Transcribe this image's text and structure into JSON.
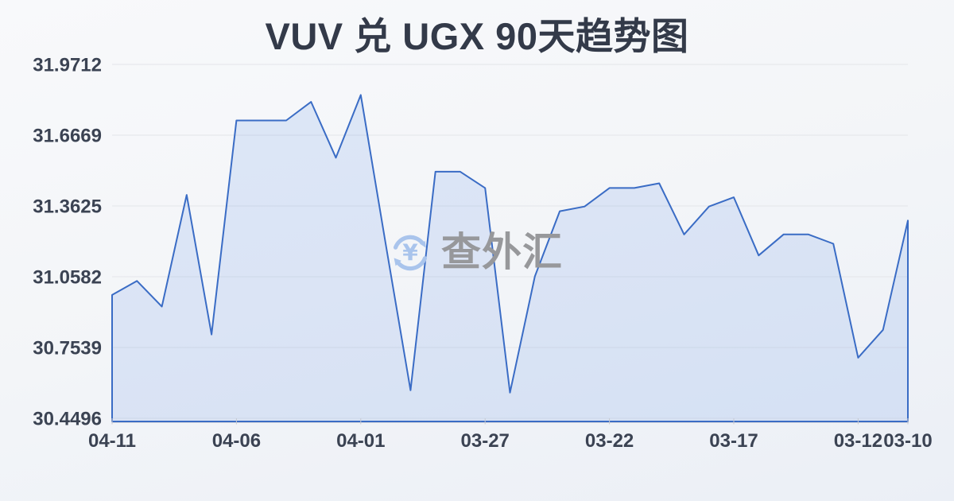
{
  "page": {
    "title": "VUV 兑 UGX 90天趋势图"
  },
  "watermark": {
    "text": "查外汇",
    "icon": "currency-exchange-icon",
    "icon_color": "#a9c4ec",
    "text_color": "#97989b"
  },
  "chart_data": {
    "type": "area",
    "title": "VUV 兑 UGX 90天趋势图",
    "x": [
      "04-11",
      "04-10",
      "04-09",
      "04-08",
      "04-07",
      "04-06",
      "04-05",
      "04-04",
      "04-03",
      "04-02",
      "04-01",
      "03-31",
      "03-30",
      "03-29",
      "03-28",
      "03-27",
      "03-26",
      "03-25",
      "03-24",
      "03-23",
      "03-22",
      "03-21",
      "03-20",
      "03-19",
      "03-18",
      "03-17",
      "03-16",
      "03-15",
      "03-14",
      "03-13",
      "03-12",
      "03-11",
      "03-10"
    ],
    "values": [
      30.98,
      31.04,
      30.93,
      31.41,
      30.81,
      31.73,
      31.73,
      31.73,
      31.81,
      31.57,
      31.84,
      31.2,
      30.57,
      31.51,
      31.51,
      31.44,
      30.56,
      31.06,
      31.34,
      31.36,
      31.44,
      31.44,
      31.46,
      31.24,
      31.36,
      31.4,
      31.15,
      31.24,
      31.24,
      31.2,
      30.71,
      30.83,
      31.3
    ],
    "x_tick_indices": [
      0,
      5,
      10,
      15,
      20,
      25,
      30,
      32
    ],
    "x_tick_labels": [
      "04-11",
      "04-06",
      "04-01",
      "03-27",
      "03-22",
      "03-17",
      "03-12",
      "03-10"
    ],
    "y_tick_labels": [
      "31.9712",
      "31.6669",
      "31.3625",
      "31.0582",
      "30.7539",
      "30.4496"
    ],
    "ylim": [
      30.4496,
      31.9712
    ],
    "xlabel": "",
    "ylabel": "",
    "grid": true,
    "legend": "none",
    "colors": {
      "line": "#3a6cc5",
      "fill": "rgba(96,140,228,0.16)",
      "gridline": "#e3e5e9",
      "axis_line": "#d5d7de",
      "tick": "#c6c9d1",
      "axis_label": "#3b4353",
      "title": "#333a49"
    }
  }
}
